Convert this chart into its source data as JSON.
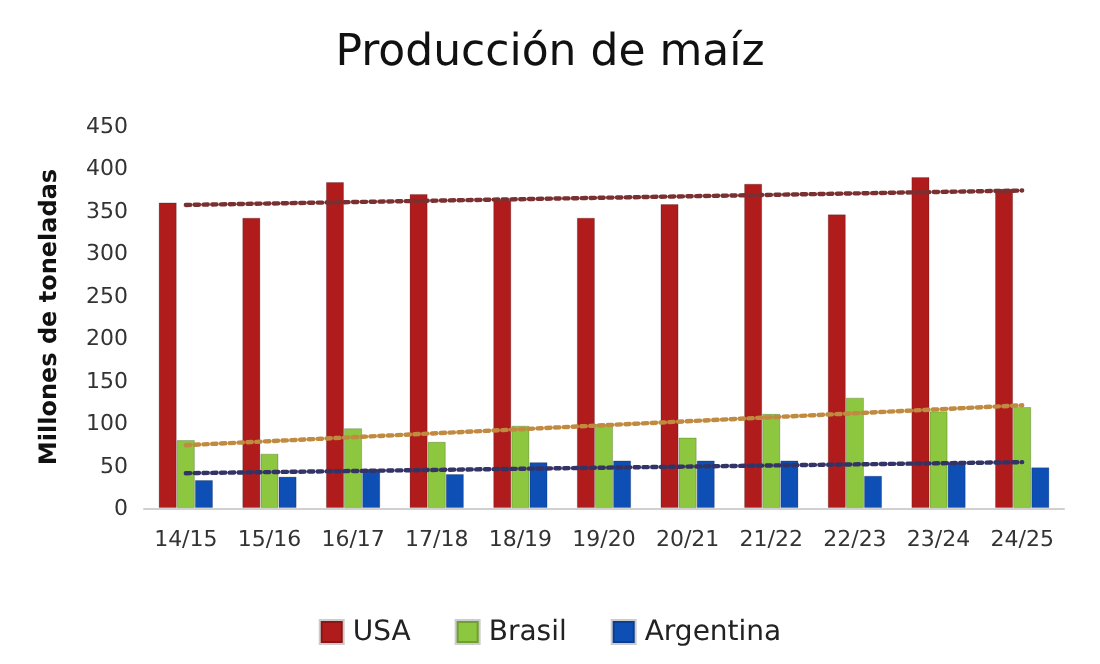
{
  "chart_data": {
    "type": "bar",
    "title": "Producción de maíz",
    "ylabel": "Millones de toneladas",
    "categories": [
      "14/15",
      "15/16",
      "16/17",
      "17/18",
      "18/19",
      "19/20",
      "20/21",
      "21/22",
      "22/23",
      "23/24",
      "24/25"
    ],
    "series": [
      {
        "name": "USA",
        "color": "#b01c1c",
        "values": [
          360,
          342,
          384,
          370,
          363,
          342,
          358,
          382,
          346,
          390,
          376
        ]
      },
      {
        "name": "Brasil",
        "color": "#8dc63f",
        "values": [
          80,
          64,
          94,
          78,
          97,
          99,
          83,
          111,
          130,
          114,
          119
        ]
      },
      {
        "name": "Argentina",
        "color": "#0d4fb5",
        "values": [
          33,
          37,
          46,
          40,
          54,
          56,
          56,
          56,
          38,
          54,
          48
        ]
      },
      {
        "type": "line",
        "color": "#7a3030",
        "line_style": "dotted",
        "marker": "none",
        "x": [
          "14/15",
          "24/25"
        ],
        "values": [
          357,
          374
        ]
      },
      {
        "type": "line",
        "color": "#c08a40",
        "line_style": "dotted",
        "marker": "none",
        "x": [
          "14/15",
          "24/25"
        ],
        "values": [
          74,
          121
        ]
      },
      {
        "type": "line",
        "color": "#333366",
        "line_style": "dotted",
        "marker": "none",
        "x": [
          "14/15",
          "24/25"
        ],
        "values": [
          41,
          54
        ]
      }
    ],
    "ylim": [
      0,
      450
    ],
    "yticks": [
      0,
      50,
      100,
      150,
      200,
      250,
      300,
      350,
      400,
      450
    ],
    "grid": false,
    "legend": "bottom"
  }
}
